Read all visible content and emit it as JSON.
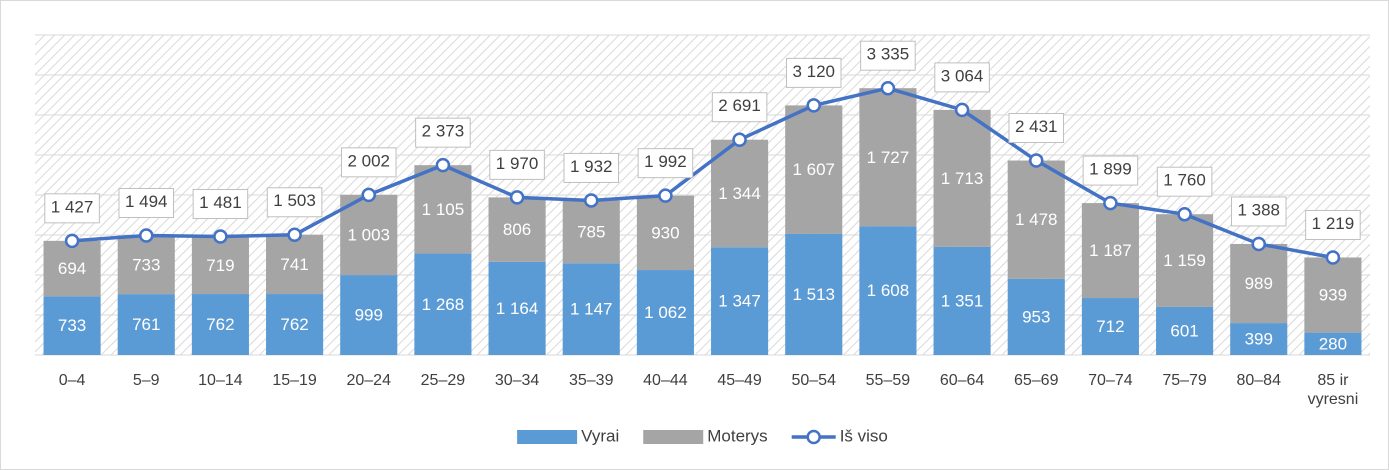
{
  "chart_data": {
    "type": "bar",
    "stacked": true,
    "categories": [
      "0–4",
      "5–9",
      "10–14",
      "15–19",
      "20–24",
      "25–29",
      "30–34",
      "35–39",
      "40–44",
      "45–49",
      "50–54",
      "55–59",
      "60–64",
      "65–69",
      "70–74",
      "75–79",
      "80–84",
      "85 ir vyresni"
    ],
    "series": [
      {
        "name": "Vyrai",
        "color": "#5b9bd5",
        "values": [
          733,
          761,
          762,
          762,
          999,
          1268,
          1164,
          1147,
          1062,
          1347,
          1513,
          1608,
          1351,
          953,
          712,
          601,
          399,
          280
        ],
        "value_labels": [
          "733",
          "761",
          "762",
          "762",
          "999",
          "1 268",
          "1 164",
          "1 147",
          "1 062",
          "1 347",
          "1 513",
          "1 608",
          "1 351",
          "953",
          "712",
          "601",
          "399",
          "280"
        ]
      },
      {
        "name": "Moterys",
        "color": "#a5a5a5",
        "values": [
          694,
          733,
          719,
          741,
          1003,
          1105,
          806,
          785,
          930,
          1344,
          1607,
          1727,
          1713,
          1478,
          1187,
          1159,
          989,
          939
        ],
        "value_labels": [
          "694",
          "733",
          "719",
          "741",
          "1 003",
          "1 105",
          "806",
          "785",
          "930",
          "1 344",
          "1 607",
          "1 727",
          "1 713",
          "1 478",
          "1 187",
          "1 159",
          "989",
          "939"
        ]
      },
      {
        "name": "Iš viso",
        "type": "line",
        "color": "#4472c4",
        "values": [
          1427,
          1494,
          1481,
          1503,
          2002,
          2373,
          1970,
          1932,
          1992,
          2691,
          3120,
          3335,
          3064,
          2431,
          1899,
          1760,
          1388,
          1219
        ],
        "value_labels": [
          "1 427",
          "1 494",
          "1 481",
          "1 503",
          "2 002",
          "2 373",
          "1 970",
          "1 932",
          "1 992",
          "2 691",
          "3 120",
          "3 335",
          "3 064",
          "2 431",
          "1 899",
          "1 760",
          "1 388",
          "1 219"
        ]
      }
    ],
    "ylim": [
      0,
      4000
    ],
    "yticks": [
      0,
      500,
      1000,
      1500,
      2000,
      2500,
      3000,
      3500,
      4000
    ],
    "grid": true,
    "legend": "bottom"
  }
}
